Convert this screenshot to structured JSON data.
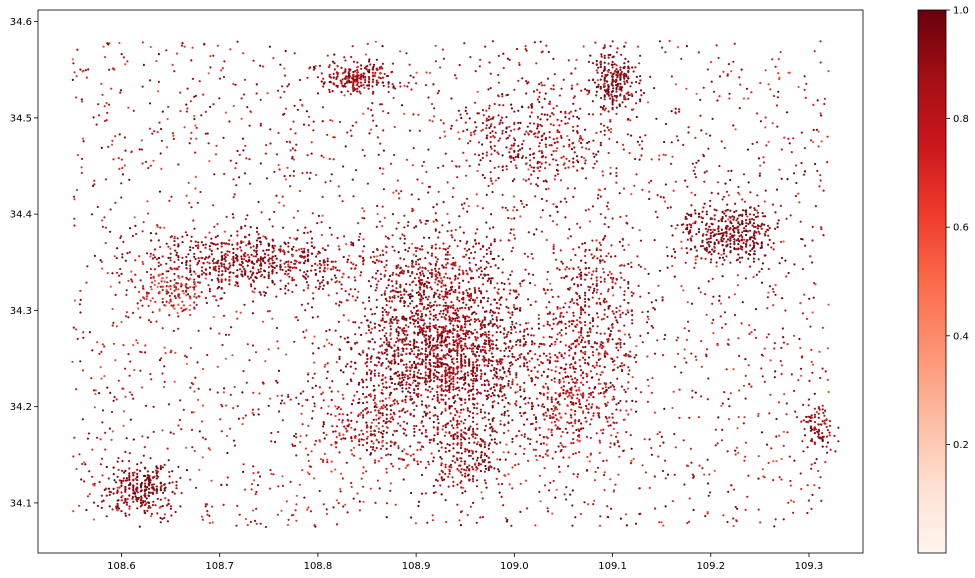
{
  "chart_data": {
    "type": "scatter",
    "title": "",
    "xlabel": "",
    "ylabel": "",
    "xlim": [
      108.515,
      109.355
    ],
    "ylim": [
      34.048,
      34.612
    ],
    "x_ticks": [
      108.6,
      108.7,
      108.8,
      108.9,
      109.0,
      109.1,
      109.2,
      109.3
    ],
    "x_tick_labels": [
      "108.6",
      "108.7",
      "108.8",
      "108.9",
      "109.0",
      "109.1",
      "109.2",
      "109.3"
    ],
    "y_ticks": [
      34.1,
      34.2,
      34.3,
      34.4,
      34.5,
      34.6
    ],
    "y_tick_labels": [
      "34.1",
      "34.2",
      "34.3",
      "34.4",
      "34.5",
      "34.6"
    ],
    "grid": false,
    "colormap": "Reds",
    "colormap_stops": [
      "#fff5f0",
      "#fee0d2",
      "#fcbba1",
      "#fc9272",
      "#fb6a4a",
      "#ef3b2c",
      "#cb181d",
      "#a50f15",
      "#67000d"
    ],
    "colorbar": {
      "range": [
        0.0,
        1.0
      ],
      "ticks": [
        0.2,
        0.4,
        0.6,
        0.8,
        1.0
      ],
      "tick_labels": [
        "0.2",
        "0.4",
        "0.6",
        "0.8",
        "1.0"
      ]
    },
    "value_range": [
      0.0,
      1.0
    ],
    "point_clusters": [
      {
        "x": 108.93,
        "y": 34.25,
        "sx": 0.05,
        "sy": 0.04,
        "n": 1600,
        "v": [
          0.8,
          1.0
        ]
      },
      {
        "x": 108.92,
        "y": 34.33,
        "sx": 0.04,
        "sy": 0.03,
        "n": 500,
        "v": [
          0.75,
          1.0
        ]
      },
      {
        "x": 109.08,
        "y": 34.29,
        "sx": 0.025,
        "sy": 0.05,
        "n": 450,
        "v": [
          0.7,
          1.0
        ]
      },
      {
        "x": 108.73,
        "y": 34.35,
        "sx": 0.05,
        "sy": 0.015,
        "n": 600,
        "v": [
          0.8,
          1.0
        ]
      },
      {
        "x": 109.22,
        "y": 34.38,
        "sx": 0.025,
        "sy": 0.015,
        "n": 380,
        "v": [
          0.85,
          1.0
        ]
      },
      {
        "x": 108.84,
        "y": 34.54,
        "sx": 0.02,
        "sy": 0.008,
        "n": 220,
        "v": [
          0.75,
          1.0
        ]
      },
      {
        "x": 109.1,
        "y": 34.54,
        "sx": 0.012,
        "sy": 0.015,
        "n": 220,
        "v": [
          0.85,
          1.0
        ]
      },
      {
        "x": 109.02,
        "y": 34.48,
        "sx": 0.04,
        "sy": 0.03,
        "n": 380,
        "v": [
          0.7,
          1.0
        ]
      },
      {
        "x": 108.62,
        "y": 34.115,
        "sx": 0.018,
        "sy": 0.014,
        "n": 280,
        "v": [
          0.85,
          1.0
        ]
      },
      {
        "x": 108.95,
        "y": 34.15,
        "sx": 0.018,
        "sy": 0.02,
        "n": 220,
        "v": [
          0.75,
          1.0
        ]
      },
      {
        "x": 109.31,
        "y": 34.175,
        "sx": 0.008,
        "sy": 0.012,
        "n": 90,
        "v": [
          0.75,
          1.0
        ]
      },
      {
        "x": 108.65,
        "y": 34.32,
        "sx": 0.02,
        "sy": 0.015,
        "n": 160,
        "v": [
          0.5,
          0.9
        ]
      },
      {
        "x": 108.85,
        "y": 34.17,
        "sx": 0.03,
        "sy": 0.02,
        "n": 200,
        "v": [
          0.6,
          1.0
        ]
      },
      {
        "x": 109.05,
        "y": 34.2,
        "sx": 0.03,
        "sy": 0.03,
        "n": 260,
        "v": [
          0.6,
          1.0
        ]
      }
    ],
    "background_points": {
      "n": 2600,
      "v": [
        0.55,
        1.0
      ]
    }
  }
}
